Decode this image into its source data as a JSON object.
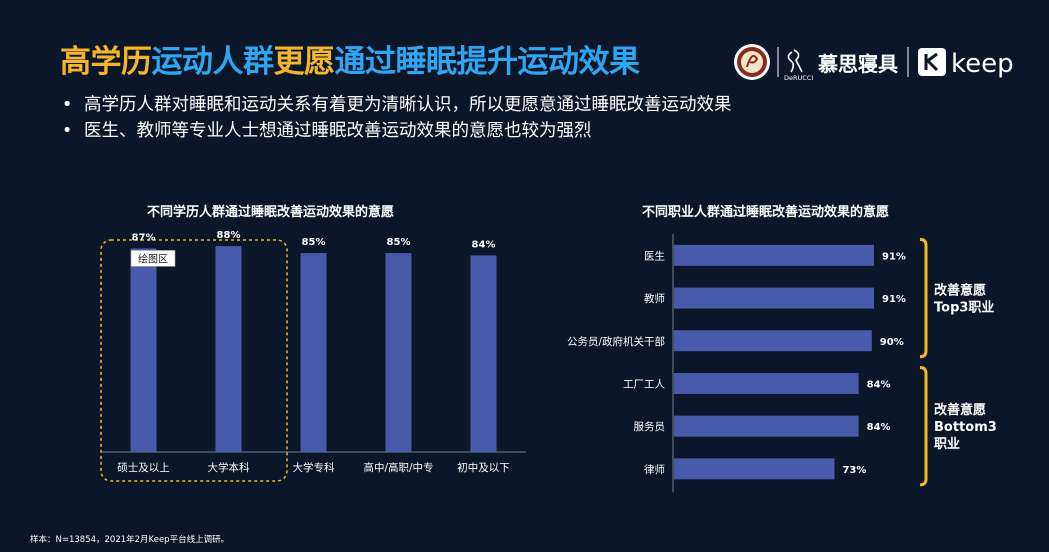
{
  "header": {
    "title_part1": "高学历",
    "title_part2": "运动人群",
    "title_part3": "更愿",
    "title_part4": "通过睡眠提升运动效果",
    "brand_derucci_text": "慕思寝具",
    "brand_derucci_latin": "DeRUCCI",
    "brand_keep_text": "keep"
  },
  "bullets": [
    "高学历人群对睡眠和运动关系有着更为清晰认识，所以更愿意通过睡眠改善运动效果",
    "医生、教师等专业人士想通过睡眠改善运动效果的意愿也较为强烈"
  ],
  "colors": {
    "background": "#0b1628",
    "bar": "#4a5aaa",
    "gold": "#f5b52a",
    "blue": "#2fa6f0"
  },
  "chart_data": [
    {
      "type": "bar",
      "title": "不同学历人群通过睡眠改善运动效果的意愿",
      "categories": [
        "硕士及以上",
        "大学本科",
        "大学专科",
        "高中/高职/中专",
        "初中及以下"
      ],
      "values": [
        87,
        88,
        85,
        85,
        84
      ],
      "value_labels": [
        "87%",
        "88%",
        "85%",
        "85%",
        "84%"
      ],
      "highlight_categories": [
        "硕士及以上",
        "大学本科"
      ],
      "tooltip_label": "绘图区",
      "orientation": "vertical"
    },
    {
      "type": "bar",
      "title": "不同职业人群通过睡眠改善运动效果的意愿",
      "categories": [
        "医生",
        "教师",
        "公务员/政府机关干部",
        "工厂工人",
        "服务员",
        "律师"
      ],
      "values": [
        91,
        91,
        90,
        84,
        84,
        73
      ],
      "value_labels": [
        "91%",
        "91%",
        "90%",
        "84%",
        "84%",
        "73%"
      ],
      "orientation": "horizontal",
      "annotations": [
        {
          "lines": [
            "改善意愿",
            "Top3职业"
          ],
          "categories": [
            "医生",
            "教师",
            "公务员/政府机关干部"
          ]
        },
        {
          "lines": [
            "改善意愿",
            "Bottom3",
            "职业"
          ],
          "categories": [
            "工厂工人",
            "服务员",
            "律师"
          ]
        }
      ]
    }
  ],
  "footnote": "样本：N=13854，2021年2月Keep平台线上调研。"
}
